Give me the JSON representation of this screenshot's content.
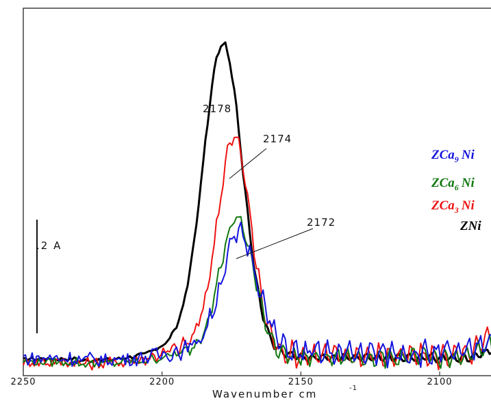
{
  "chart_data": {
    "type": "line",
    "xlabel": "Wavenumber cm",
    "xlabel_sup": "-1",
    "xlim": [
      2250,
      2080
    ],
    "x_reversed": true,
    "xticks": [
      "2250",
      "2200",
      "2150",
      "2100"
    ],
    "ylim": [
      -0.02,
      1.0
    ],
    "grid": false,
    "scale_bar": {
      "label": ".2 A",
      "value": 0.2
    },
    "legend_position": "right",
    "legend": [
      {
        "base": "ZCa",
        "sub": "9",
        "tail": "Ni",
        "color": "#1515dd"
      },
      {
        "base": "ZCa",
        "sub": "6",
        "tail": "Ni",
        "color": "#107810"
      },
      {
        "base": "ZCa",
        "sub": "3",
        "tail": "Ni",
        "color": "#ee1111"
      },
      {
        "base": "ZNi",
        "sub": "",
        "tail": "",
        "color": "#000000"
      }
    ],
    "annotations": [
      {
        "text": "2178",
        "x": 2178
      },
      {
        "text": "2174",
        "x": 2174
      },
      {
        "text": "2172",
        "x": 2172
      }
    ],
    "series": [
      {
        "color": "#000000",
        "peak_x": 2178,
        "peak_y": 0.82,
        "width": 7.0,
        "base": 0.02,
        "osc": 0.02,
        "noise": 0.002,
        "stroke": 3
      },
      {
        "color": "#ee1111",
        "peak_x": 2174,
        "peak_y": 0.58,
        "width": 6.0,
        "base": 0.01,
        "osc": 0.05,
        "noise": 0.008,
        "stroke": 2
      },
      {
        "color": "#107810",
        "peak_x": 2173,
        "peak_y": 0.37,
        "width": 6.2,
        "base": 0.01,
        "osc": 0.04,
        "noise": 0.006,
        "stroke": 2
      },
      {
        "color": "#1515dd",
        "peak_x": 2172,
        "peak_y": 0.32,
        "width": 6.5,
        "base": 0.02,
        "osc": 0.045,
        "noise": 0.01,
        "stroke": 2
      }
    ]
  }
}
